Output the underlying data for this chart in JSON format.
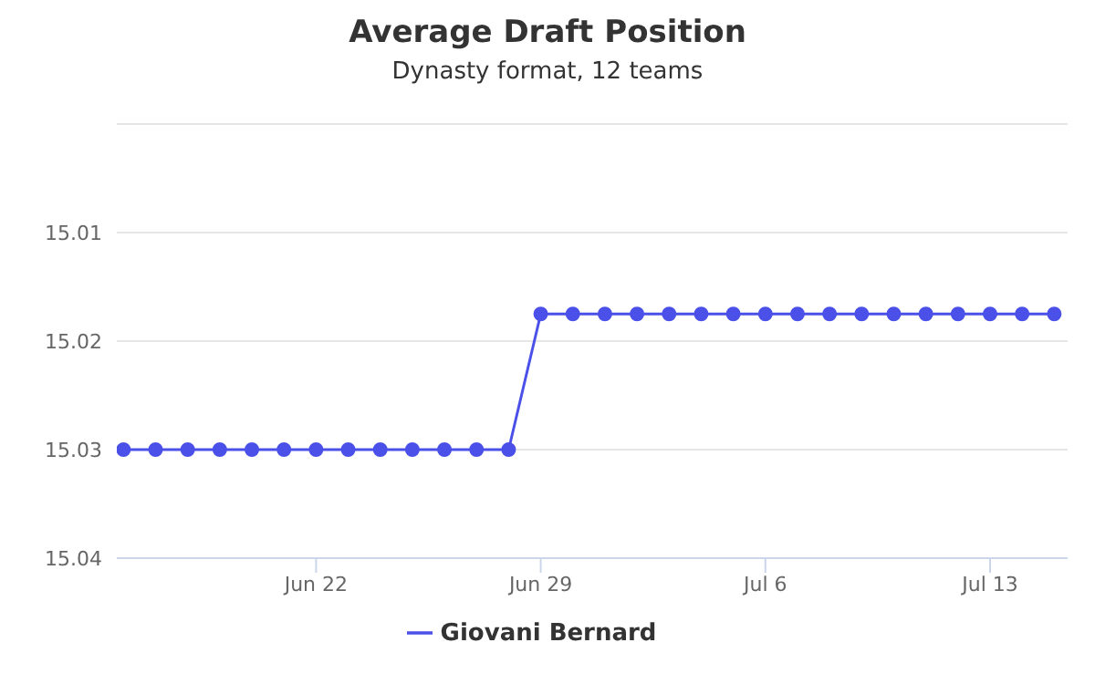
{
  "chart_data": {
    "type": "line",
    "title": "Average Draft Position",
    "subtitle": "Dynasty format, 12 teams",
    "x": [
      "--06-16",
      "--06-17",
      "--06-18",
      "--06-19",
      "--06-20",
      "--06-21",
      "--06-22",
      "--06-23",
      "--06-24",
      "--06-25",
      "--06-26",
      "--06-27",
      "--06-28",
      "--06-29",
      "--06-30",
      "--07-01",
      "--07-02",
      "--07-03",
      "--07-04",
      "--07-05",
      "--07-06",
      "--07-07",
      "--07-08",
      "--07-09",
      "--07-10",
      "--07-11",
      "--07-12",
      "--07-13",
      "--07-14",
      "--07-15"
    ],
    "series": [
      {
        "name": "Giovani Bernard",
        "color": "#4a50e8",
        "values": [
          15.03,
          15.03,
          15.03,
          15.03,
          15.03,
          15.03,
          15.03,
          15.03,
          15.03,
          15.03,
          15.03,
          15.03,
          15.03,
          15.0175,
          15.0175,
          15.0175,
          15.0175,
          15.0175,
          15.0175,
          15.0175,
          15.0175,
          15.0175,
          15.0175,
          15.0175,
          15.0175,
          15.0175,
          15.0175,
          15.0175,
          15.0175,
          15.0175
        ]
      }
    ],
    "xlim": [
      "--06-15T19:00",
      "--07-15T10:00"
    ],
    "xticks": [
      {
        "value": "--06-22",
        "label": "Jun 22"
      },
      {
        "value": "--06-29",
        "label": "Jun 29"
      },
      {
        "value": "--07-06",
        "label": "Jul 6"
      },
      {
        "value": "--07-13",
        "label": "Jul 13"
      }
    ],
    "ylim": [
      15.04,
      15.0
    ],
    "yticks": [
      {
        "value": 15.0,
        "label": null
      },
      15.01,
      15.02,
      15.03,
      15.04
    ],
    "grid": "y",
    "legend": "bottom",
    "marker": "circle",
    "line_style": "solid"
  }
}
